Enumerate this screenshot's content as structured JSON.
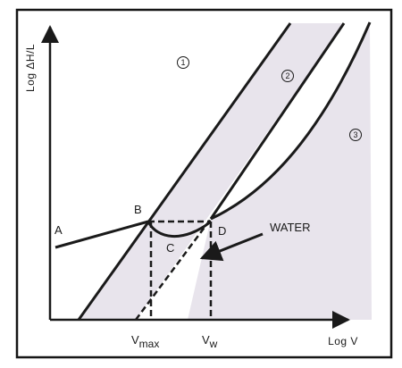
{
  "axes": {
    "y_label": "Log ΔH/L",
    "x_label": "Log V"
  },
  "regions": [
    "1",
    "2",
    "3"
  ],
  "points": {
    "a": "A",
    "b": "B",
    "c": "C",
    "d": "D"
  },
  "annotation": "WATER",
  "ticks": {
    "vmax_main": "V",
    "vmax_sub": "max",
    "vw_main": "V",
    "vw_sub": "w"
  },
  "colors": {
    "frame": "#151515",
    "region_fill": "#e8e4ec",
    "ink": "#1a1a1a"
  }
}
